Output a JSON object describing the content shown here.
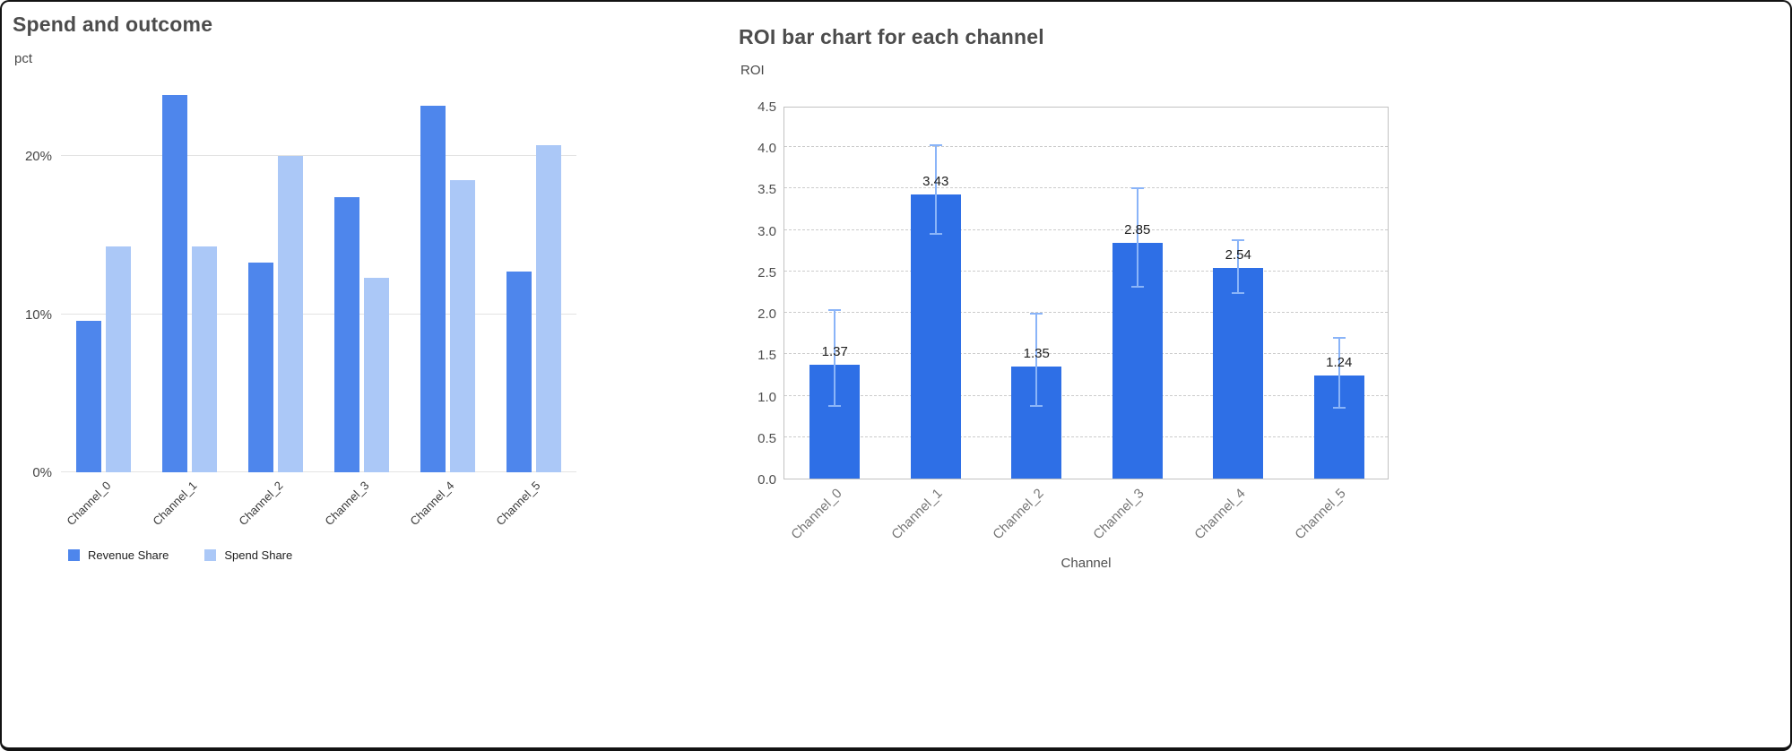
{
  "chart_data": [
    {
      "type": "bar",
      "title": "Spend and outcome",
      "ylabel": "pct",
      "xlabel": "",
      "categories": [
        "Channel_0",
        "Channel_1",
        "Channel_2",
        "Channel_3",
        "Channel_4",
        "Channel_5"
      ],
      "series": [
        {
          "name": "Revenue Share",
          "color": "#4e86ec",
          "values": [
            9.6,
            23.9,
            13.3,
            17.4,
            23.2,
            12.7
          ]
        },
        {
          "name": "Spend Share",
          "color": "#abc8f7",
          "values": [
            14.3,
            14.3,
            20.0,
            12.3,
            18.5,
            20.7
          ]
        }
      ],
      "ylim": [
        0,
        24.5
      ],
      "y_ticks": [
        {
          "value": 0,
          "label": "0%"
        },
        {
          "value": 10,
          "label": "10%"
        },
        {
          "value": 20,
          "label": "20%"
        }
      ],
      "grid": true,
      "legend_position": "bottom"
    },
    {
      "type": "bar",
      "title": "ROI bar chart for each channel",
      "ylabel": "ROI",
      "xlabel": "Channel",
      "categories": [
        "Channel_0",
        "Channel_1",
        "Channel_2",
        "Channel_3",
        "Channel_4",
        "Channel_5"
      ],
      "values": [
        1.37,
        3.43,
        1.35,
        2.85,
        2.54,
        1.24
      ],
      "error_low": [
        0.88,
        2.95,
        0.88,
        2.32,
        2.24,
        0.85
      ],
      "error_high": [
        2.03,
        4.02,
        1.99,
        3.51,
        2.88,
        1.7
      ],
      "ylim": [
        0,
        4.5
      ],
      "y_tick_step": 0.5,
      "bar_color": "#2e6fe6",
      "error_color": "#8ab4f8",
      "grid": "dashed",
      "legend_position": "none"
    }
  ]
}
